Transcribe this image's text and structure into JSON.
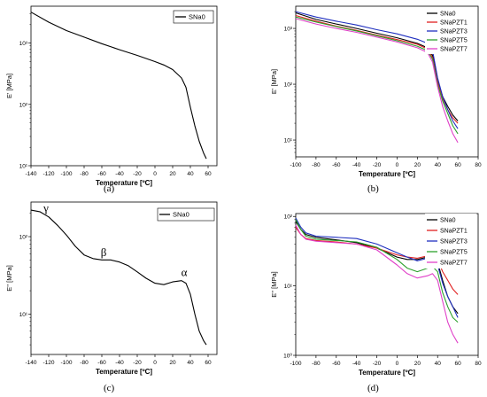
{
  "figure": {
    "captions": [
      "(a)",
      "(b)",
      "(c)",
      "(d)"
    ]
  },
  "chart_data": [
    {
      "type": "line",
      "panel": "a",
      "xlabel": "Temperature [ºC]",
      "ylabel": "E' [MPa]",
      "x_scale": "linear",
      "y_scale": "log",
      "xlim": [
        -140,
        70
      ],
      "ylim": [
        10,
        4000
      ],
      "x_ticks": [
        -140,
        -120,
        -100,
        -80,
        -60,
        -40,
        -20,
        0,
        20,
        40,
        60
      ],
      "x_tick_labels": [
        "-140",
        "-120",
        "-100",
        "-80",
        "-60",
        "-40",
        "-20",
        "0",
        "20",
        "40",
        "60"
      ],
      "y_ticks": [
        10,
        100,
        1000
      ],
      "y_tick_labels": [
        "10¹",
        "10²",
        "10³"
      ],
      "legend_position": "top-right",
      "series": [
        {
          "name": "SNa0",
          "color": "#000000",
          "x": [
            -140,
            -120,
            -100,
            -80,
            -60,
            -40,
            -20,
            0,
            10,
            20,
            30,
            35,
            40,
            45,
            50,
            55,
            58
          ],
          "y": [
            3200,
            2200,
            1600,
            1250,
            980,
            780,
            630,
            500,
            440,
            370,
            270,
            190,
            90,
            45,
            25,
            16,
            13
          ]
        }
      ]
    },
    {
      "type": "line",
      "panel": "b",
      "xlabel": "Temperature [ºC]",
      "ylabel": "E' [MPa]",
      "x_scale": "linear",
      "y_scale": "log",
      "xlim": [
        -100,
        80
      ],
      "ylim": [
        5,
        2500
      ],
      "x_ticks": [
        -100,
        -80,
        -60,
        -40,
        -20,
        0,
        20,
        40,
        60,
        80
      ],
      "x_tick_labels": [
        "-100",
        "-80",
        "-60",
        "-40",
        "-20",
        "0",
        "20",
        "40",
        "60",
        "80"
      ],
      "y_ticks": [
        10,
        100,
        1000
      ],
      "y_tick_labels": [
        "10¹",
        "10²",
        "10³"
      ],
      "legend_position": "top-right",
      "series": [
        {
          "name": "SNa0",
          "color": "#000000",
          "x": [
            -100,
            -80,
            -60,
            -40,
            -20,
            0,
            20,
            30,
            35,
            40,
            45,
            50,
            55,
            60
          ],
          "y": [
            1900,
            1450,
            1200,
            1000,
            820,
            680,
            540,
            450,
            330,
            120,
            60,
            40,
            28,
            22
          ]
        },
        {
          "name": "SNaPZT1",
          "color": "#e02020",
          "x": [
            -100,
            -80,
            -60,
            -40,
            -20,
            0,
            20,
            30,
            35,
            40,
            45,
            50,
            55,
            60
          ],
          "y": [
            1700,
            1350,
            1100,
            920,
            760,
            630,
            520,
            430,
            300,
            110,
            55,
            35,
            25,
            20
          ]
        },
        {
          "name": "SNaPZT3",
          "color": "#1f2fbf",
          "x": [
            -100,
            -80,
            -60,
            -40,
            -20,
            0,
            20,
            30,
            35,
            40,
            45,
            50,
            55,
            60
          ],
          "y": [
            2000,
            1600,
            1350,
            1150,
            950,
            800,
            640,
            540,
            400,
            130,
            60,
            35,
            22,
            16
          ]
        },
        {
          "name": "SNaPZT5",
          "color": "#2ca02c",
          "x": [
            -100,
            -80,
            -60,
            -40,
            -20,
            0,
            20,
            30,
            35,
            40,
            45,
            50,
            55,
            60
          ],
          "y": [
            1600,
            1300,
            1080,
            900,
            740,
            600,
            480,
            400,
            280,
            100,
            50,
            30,
            18,
            13
          ]
        },
        {
          "name": "SNaPZT7",
          "color": "#e040c8",
          "x": [
            -100,
            -80,
            -60,
            -40,
            -20,
            0,
            20,
            30,
            35,
            40,
            45,
            50,
            55,
            60
          ],
          "y": [
            1500,
            1200,
            1000,
            850,
            700,
            570,
            450,
            370,
            250,
            90,
            40,
            22,
            13,
            9
          ]
        }
      ]
    },
    {
      "type": "line",
      "panel": "c",
      "xlabel": "Temperature [ºC]",
      "ylabel": "E'' [MPa]",
      "x_scale": "linear",
      "y_scale": "log",
      "xlim": [
        -140,
        70
      ],
      "ylim": [
        3,
        280
      ],
      "x_ticks": [
        -140,
        -120,
        -100,
        -80,
        -60,
        -40,
        -20,
        0,
        20,
        40,
        60
      ],
      "x_tick_labels": [
        "-140",
        "-120",
        "-100",
        "-80",
        "-60",
        "-40",
        "-20",
        "0",
        "20",
        "40",
        "60"
      ],
      "y_ticks": [
        10,
        100
      ],
      "y_tick_labels": [
        "10¹",
        "10²"
      ],
      "legend_position": "top-right",
      "annotations": [
        {
          "text": "γ",
          "x": -123,
          "y": 210
        },
        {
          "text": "β",
          "x": -58,
          "y": 56
        },
        {
          "text": "α",
          "x": 33,
          "y": 31
        }
      ],
      "series": [
        {
          "name": "SNa0",
          "color": "#000000",
          "x": [
            -140,
            -130,
            -120,
            -110,
            -100,
            -90,
            -80,
            -70,
            -60,
            -50,
            -40,
            -30,
            -20,
            -10,
            0,
            10,
            20,
            30,
            35,
            40,
            45,
            50,
            55,
            58
          ],
          "y": [
            220,
            210,
            180,
            140,
            105,
            75,
            58,
            52,
            50,
            50,
            47,
            42,
            35,
            29,
            25,
            24,
            26,
            27,
            25,
            18,
            10,
            6,
            4.5,
            4
          ]
        }
      ]
    },
    {
      "type": "line",
      "panel": "d",
      "xlabel": "Temperature [ºC]",
      "ylabel": "E'' [MPa]",
      "x_scale": "linear",
      "y_scale": "log",
      "xlim": [
        -100,
        80
      ],
      "ylim": [
        1,
        110
      ],
      "x_ticks": [
        -100,
        -80,
        -60,
        -40,
        -20,
        0,
        20,
        40,
        60,
        80
      ],
      "x_tick_labels": [
        "-100",
        "-80",
        "-60",
        "-40",
        "-20",
        "0",
        "20",
        "40",
        "60",
        "80"
      ],
      "y_ticks": [
        1,
        10,
        100
      ],
      "y_tick_labels": [
        "10⁰",
        "10¹",
        "10²"
      ],
      "legend_position": "top-right",
      "series": [
        {
          "name": "SNa0",
          "color": "#000000",
          "x": [
            -100,
            -95,
            -90,
            -80,
            -60,
            -40,
            -20,
            0,
            10,
            20,
            30,
            35,
            40,
            45,
            50,
            55,
            60
          ],
          "y": [
            85,
            65,
            55,
            50,
            46,
            42,
            35,
            26,
            24,
            24,
            26,
            27,
            22,
            12,
            7,
            5,
            4
          ]
        },
        {
          "name": "SNaPZT1",
          "color": "#e02020",
          "x": [
            -100,
            -95,
            -90,
            -80,
            -60,
            -40,
            -20,
            0,
            10,
            20,
            30,
            35,
            40,
            45,
            50,
            55,
            60
          ],
          "y": [
            70,
            55,
            48,
            45,
            43,
            40,
            35,
            28,
            26,
            25,
            27,
            28,
            24,
            16,
            12,
            9,
            7.5
          ]
        },
        {
          "name": "SNaPZT3",
          "color": "#1f2fbf",
          "x": [
            -100,
            -95,
            -90,
            -80,
            -60,
            -40,
            -20,
            0,
            10,
            20,
            30,
            35,
            40,
            45,
            50,
            55,
            60
          ],
          "y": [
            95,
            70,
            58,
            52,
            50,
            48,
            40,
            30,
            26,
            23,
            25,
            26,
            20,
            11,
            7,
            5,
            3.5
          ]
        },
        {
          "name": "SNaPZT5",
          "color": "#2ca02c",
          "x": [
            -100,
            -95,
            -90,
            -80,
            -60,
            -40,
            -20,
            0,
            10,
            20,
            30,
            35,
            40,
            45,
            50,
            55,
            60
          ],
          "y": [
            90,
            65,
            52,
            47,
            45,
            43,
            36,
            24,
            18,
            16,
            18,
            19,
            16,
            8,
            5,
            3.5,
            3
          ]
        },
        {
          "name": "SNaPZT7",
          "color": "#e040c8",
          "x": [
            -100,
            -95,
            -90,
            -80,
            -60,
            -40,
            -20,
            0,
            10,
            20,
            30,
            35,
            40,
            45,
            50,
            55,
            60
          ],
          "y": [
            75,
            55,
            47,
            44,
            42,
            40,
            33,
            20,
            15,
            13,
            14,
            15,
            12,
            6,
            3,
            2,
            1.5
          ]
        }
      ]
    }
  ]
}
